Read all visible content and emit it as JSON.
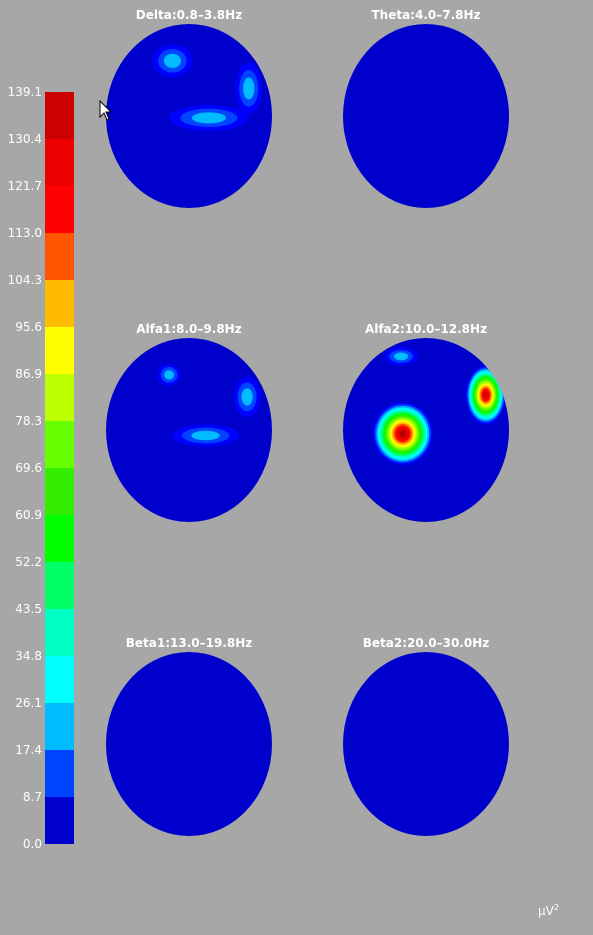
{
  "chart_data": {
    "type": "heatmap",
    "unit": "µV",
    "unit_power": "2",
    "colorbar": {
      "min": 0.0,
      "max": 139.1,
      "ticks": [
        "139.1",
        "130.4",
        "121.7",
        "113.0",
        "104.3",
        "95.6",
        "86.9",
        "78.3",
        "69.6",
        "60.9",
        "52.2",
        "43.5",
        "34.8",
        "26.1",
        "17.4",
        "8.7",
        "0.0"
      ],
      "colors": [
        "#0000cc",
        "#0000ff",
        "#0044ff",
        "#00bbff",
        "#00ffff",
        "#00ffc4",
        "#00ff66",
        "#00ff00",
        "#33ee00",
        "#66ff00",
        "#bbff00",
        "#ffff00",
        "#ffbb00",
        "#ff5500",
        "#ff0000",
        "#ee0000",
        "#cc0000",
        "#aa0000"
      ]
    },
    "maps": [
      {
        "title": "Delta:0.8–3.8Hz",
        "blobs": [
          {
            "cx": 0.4,
            "cy": 0.2,
            "rx": 0.12,
            "ry": 0.09,
            "level": 3
          },
          {
            "cx": 0.62,
            "cy": 0.51,
            "rx": 0.24,
            "ry": 0.07,
            "level": 3
          },
          {
            "cx": 0.86,
            "cy": 0.35,
            "rx": 0.08,
            "ry": 0.14,
            "level": 3
          }
        ]
      },
      {
        "title": "Theta:4.0–7.8Hz",
        "blobs": []
      },
      {
        "title": "Alfa1:8.0–9.8Hz",
        "blobs": [
          {
            "cx": 0.38,
            "cy": 0.2,
            "rx": 0.07,
            "ry": 0.06,
            "level": 3
          },
          {
            "cx": 0.6,
            "cy": 0.53,
            "rx": 0.2,
            "ry": 0.06,
            "level": 3
          },
          {
            "cx": 0.85,
            "cy": 0.32,
            "rx": 0.08,
            "ry": 0.11,
            "level": 3
          }
        ]
      },
      {
        "title": "Alfa2:10.0–12.8Hz",
        "blobs": [
          {
            "cx": 0.36,
            "cy": 0.52,
            "rx": 0.18,
            "ry": 0.17,
            "level": 17
          },
          {
            "cx": 0.86,
            "cy": 0.31,
            "rx": 0.12,
            "ry": 0.16,
            "level": 16
          },
          {
            "cx": 0.35,
            "cy": 0.1,
            "rx": 0.1,
            "ry": 0.05,
            "level": 3
          }
        ]
      },
      {
        "title": "Beta1:13.0–19.8Hz",
        "blobs": []
      },
      {
        "title": "Beta2:20.0–30.0Hz",
        "blobs": []
      }
    ]
  }
}
